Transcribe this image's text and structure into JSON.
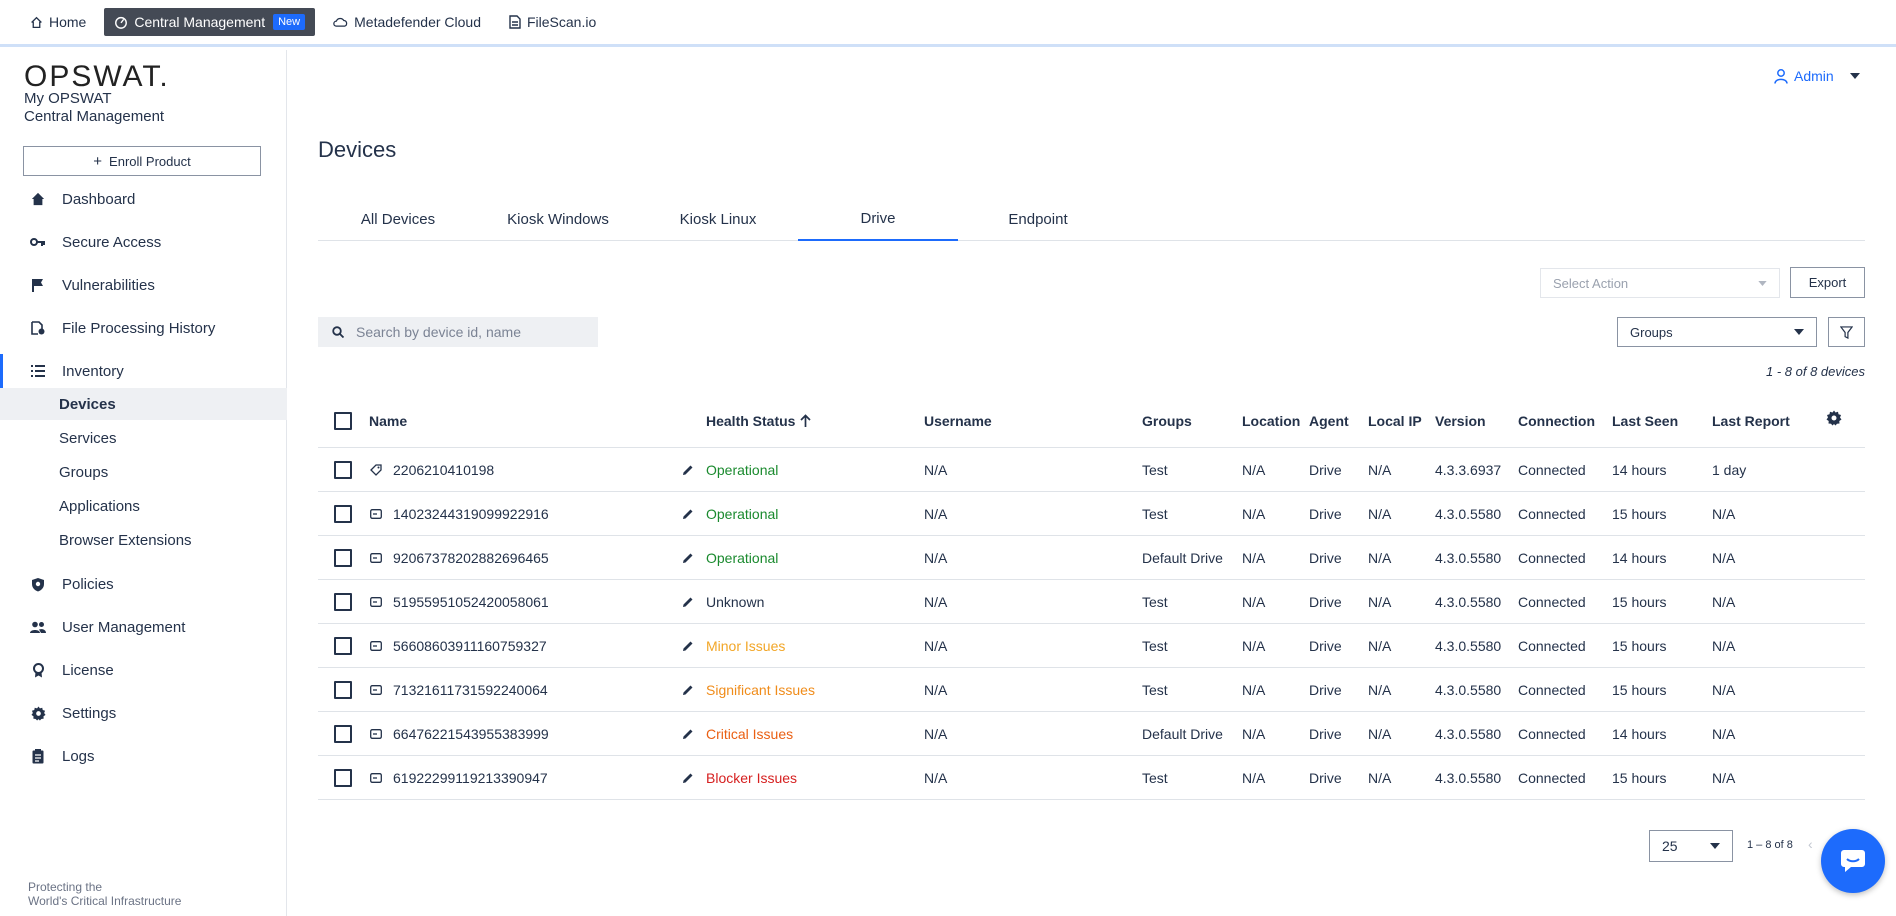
{
  "topnav": {
    "items": [
      {
        "label": "Home",
        "icon": "home-icon"
      },
      {
        "label": "Central Management",
        "badge": "New",
        "icon": "gauge-icon",
        "active": true
      },
      {
        "label": "Metadefender Cloud",
        "icon": "cloud-icon"
      },
      {
        "label": "FileScan.io",
        "icon": "document-icon"
      }
    ]
  },
  "sidebar": {
    "logo": "OPSWAT.",
    "brand_line1": "My OPSWAT",
    "brand_line2": "Central Management",
    "enroll_label": "Enroll Product",
    "items": [
      {
        "label": "Dashboard",
        "icon": "home-icon"
      },
      {
        "label": "Secure Access",
        "icon": "key-icon"
      },
      {
        "label": "Vulnerabilities",
        "icon": "flag-icon"
      },
      {
        "label": "File Processing History",
        "icon": "file-history-icon"
      },
      {
        "label": "Inventory",
        "icon": "list-icon"
      },
      {
        "label": "Policies",
        "icon": "shield-icon"
      },
      {
        "label": "User Management",
        "icon": "users-icon"
      },
      {
        "label": "License",
        "icon": "license-icon"
      },
      {
        "label": "Settings",
        "icon": "gear-icon"
      },
      {
        "label": "Logs",
        "icon": "clipboard-icon"
      }
    ],
    "inventory_sub": [
      "Devices",
      "Services",
      "Groups",
      "Applications",
      "Browser Extensions"
    ],
    "footer_line1": "Protecting the",
    "footer_line2": "World's Critical Infrastructure"
  },
  "header": {
    "user": "Admin"
  },
  "page": {
    "title": "Devices",
    "tabs": [
      "All Devices",
      "Kiosk Windows",
      "Kiosk Linux",
      "Drive",
      "Endpoint"
    ],
    "active_tab": "Drive",
    "select_action_placeholder": "Select Action",
    "export_label": "Export",
    "search_placeholder": "Search by device id, name",
    "groups_select": "Groups",
    "count_text": "1 - 8 of 8 devices"
  },
  "table": {
    "columns": [
      "Name",
      "Health Status",
      "Username",
      "Groups",
      "Location",
      "Agent",
      "Local IP",
      "Version",
      "Connection",
      "Last Seen",
      "Last Report"
    ],
    "rows": [
      {
        "name": "2206210410198",
        "icon": "tag-icon",
        "health": "Operational",
        "health_color": "#1a8a2e",
        "username": "N/A",
        "groups": "Test",
        "location": "N/A",
        "agent": "Drive",
        "local_ip": "N/A",
        "version": "4.3.3.6937",
        "connection": "Connected",
        "last_seen": "14 hours",
        "last_report": "1 day"
      },
      {
        "name": "14023244319099922916",
        "icon": "drive-icon",
        "health": "Operational",
        "health_color": "#1a8a2e",
        "username": "N/A",
        "groups": "Test",
        "location": "N/A",
        "agent": "Drive",
        "local_ip": "N/A",
        "version": "4.3.0.5580",
        "connection": "Connected",
        "last_seen": "15 hours",
        "last_report": "N/A"
      },
      {
        "name": "92067378202882696465",
        "icon": "drive-icon",
        "health": "Operational",
        "health_color": "#1a8a2e",
        "username": "N/A",
        "groups": "Default Drive",
        "location": "N/A",
        "agent": "Drive",
        "local_ip": "N/A",
        "version": "4.3.0.5580",
        "connection": "Connected",
        "last_seen": "14 hours",
        "last_report": "N/A"
      },
      {
        "name": "51955951052420058061",
        "icon": "drive-icon",
        "health": "Unknown",
        "health_color": "#24324a",
        "username": "N/A",
        "groups": "Test",
        "location": "N/A",
        "agent": "Drive",
        "local_ip": "N/A",
        "version": "4.3.0.5580",
        "connection": "Connected",
        "last_seen": "15 hours",
        "last_report": "N/A"
      },
      {
        "name": "56608603911160759327",
        "icon": "drive-icon",
        "health": "Minor Issues",
        "health_color": "#f2a627",
        "username": "N/A",
        "groups": "Test",
        "location": "N/A",
        "agent": "Drive",
        "local_ip": "N/A",
        "version": "4.3.0.5580",
        "connection": "Connected",
        "last_seen": "15 hours",
        "last_report": "N/A"
      },
      {
        "name": "71321611731592240064",
        "icon": "drive-icon",
        "health": "Significant Issues",
        "health_color": "#f08c1a",
        "username": "N/A",
        "groups": "Test",
        "location": "N/A",
        "agent": "Drive",
        "local_ip": "N/A",
        "version": "4.3.0.5580",
        "connection": "Connected",
        "last_seen": "15 hours",
        "last_report": "N/A"
      },
      {
        "name": "66476221543955383999",
        "icon": "drive-icon",
        "health": "Critical Issues",
        "health_color": "#ea5f12",
        "username": "N/A",
        "groups": "Default Drive",
        "location": "N/A",
        "agent": "Drive",
        "local_ip": "N/A",
        "version": "4.3.0.5580",
        "connection": "Connected",
        "last_seen": "14 hours",
        "last_report": "N/A"
      },
      {
        "name": "61922299119213390947",
        "icon": "drive-icon",
        "health": "Blocker Issues",
        "health_color": "#d61f1f",
        "username": "N/A",
        "groups": "Test",
        "location": "N/A",
        "agent": "Drive",
        "local_ip": "N/A",
        "version": "4.3.0.5580",
        "connection": "Connected",
        "last_seen": "15 hours",
        "last_report": "N/A"
      }
    ]
  },
  "pagination": {
    "page_size": "25",
    "range": "1 – 8 of 8"
  },
  "colors": {
    "accent": "#1d6bfc",
    "active_nav": "#444a55"
  }
}
